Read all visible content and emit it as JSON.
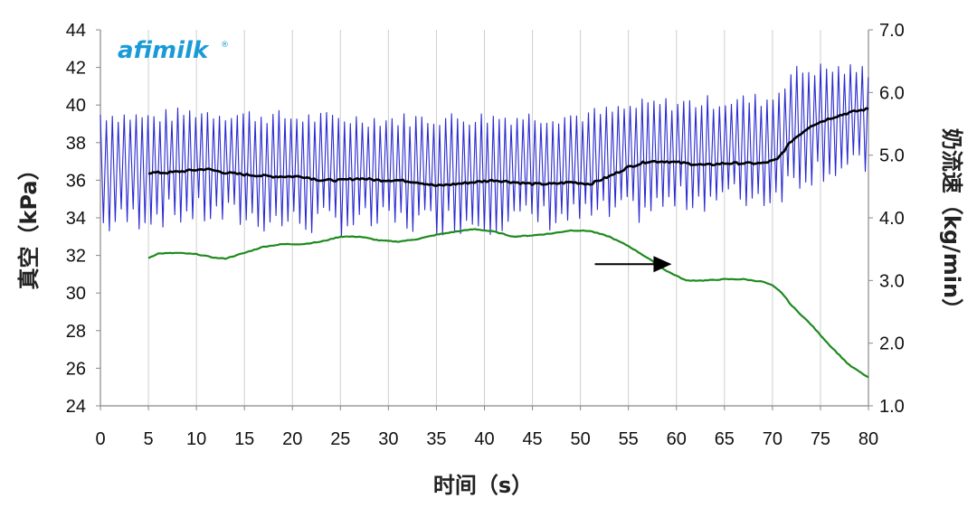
{
  "chart_data": {
    "type": "line",
    "logo": "afimilk",
    "logo_mark": "®",
    "xlabel": "时间（s）",
    "ylabel_left": "真空（kPa）",
    "ylabel_right": "奶流速（kg/min）",
    "x_ticks": [
      "0",
      "5",
      "10",
      "15",
      "20",
      "25",
      "30",
      "35",
      "40",
      "45",
      "50",
      "55",
      "60",
      "65",
      "70",
      "75",
      "80"
    ],
    "y_left_ticks": [
      "24",
      "26",
      "28",
      "30",
      "32",
      "34",
      "36",
      "38",
      "40",
      "42",
      "44"
    ],
    "y_right_ticks": [
      "1.0",
      "2.0",
      "3.0",
      "4.0",
      "5.0",
      "6.0",
      "7.0"
    ],
    "xlim": [
      0,
      80
    ],
    "ylim_left": [
      24,
      44
    ],
    "ylim_right": [
      1.0,
      7.0
    ],
    "grid": "vertical",
    "colors": {
      "vacuum": "#2a2ad0",
      "mean_vacuum": "#000000",
      "milk_flow": "#1e8a1e",
      "grid": "#cfcfcf",
      "axis": "#888888",
      "logo": "#1a9bd7"
    },
    "series": [
      {
        "axis": "left",
        "style": "pulsating",
        "x_range": [
          0,
          80
        ],
        "envelope_x": [
          0,
          5,
          10,
          20,
          30,
          40,
          50,
          53,
          57,
          62,
          70,
          72,
          75,
          80
        ],
        "envelope_high": [
          39.5,
          39.3,
          39.6,
          39.3,
          39.2,
          39.3,
          39.4,
          39.6,
          40.0,
          40.1,
          40.3,
          41.7,
          41.9,
          41.8
        ],
        "envelope_low": [
          33.6,
          34.2,
          34.3,
          33.8,
          33.8,
          33.9,
          34.1,
          34.2,
          34.5,
          35.1,
          35.2,
          36.0,
          36.7,
          36.6
        ],
        "cycle_s": 0.62
      },
      {
        "axis": "left",
        "style": "mean",
        "x": [
          5,
          7,
          9,
          11,
          13,
          15,
          18,
          21,
          23,
          25,
          27,
          29,
          31,
          33,
          35,
          37,
          39,
          41,
          43,
          45,
          47,
          49,
          51,
          53,
          55,
          57,
          59,
          61,
          63,
          65,
          67,
          69,
          70.5,
          72,
          74,
          76,
          78,
          80
        ],
        "y": [
          36.4,
          36.4,
          36.5,
          36.6,
          36.4,
          36.3,
          36.2,
          36.2,
          36.0,
          36.0,
          36.1,
          36.0,
          36.0,
          35.9,
          35.7,
          35.8,
          35.9,
          36.0,
          35.9,
          35.8,
          35.8,
          35.9,
          35.8,
          36.2,
          36.7,
          37.0,
          37.0,
          36.9,
          36.8,
          36.9,
          36.9,
          36.9,
          37.1,
          38.1,
          38.9,
          39.3,
          39.6,
          39.8
        ]
      },
      {
        "axis": "right",
        "style": "flow",
        "x": [
          5,
          6,
          8,
          10,
          12,
          13,
          15,
          17,
          19,
          21,
          23,
          25,
          27,
          29,
          31,
          33,
          35,
          37,
          39,
          41,
          43,
          45,
          47,
          49,
          51,
          53,
          55,
          57,
          59,
          61,
          63,
          65,
          67,
          69,
          70,
          71,
          72,
          74,
          76,
          78,
          80
        ],
        "y": [
          3.36,
          3.43,
          3.44,
          3.42,
          3.36,
          3.35,
          3.44,
          3.54,
          3.58,
          3.58,
          3.62,
          3.7,
          3.7,
          3.64,
          3.62,
          3.66,
          3.73,
          3.78,
          3.82,
          3.78,
          3.7,
          3.72,
          3.75,
          3.8,
          3.79,
          3.7,
          3.55,
          3.36,
          3.15,
          3.0,
          3.0,
          3.02,
          3.02,
          2.98,
          2.92,
          2.8,
          2.6,
          2.3,
          1.96,
          1.65,
          1.45
        ]
      }
    ],
    "annotations": [
      {
        "type": "arrow",
        "x_start": 51.5,
        "x_end": 59.5,
        "y_right": 3.26
      }
    ]
  }
}
